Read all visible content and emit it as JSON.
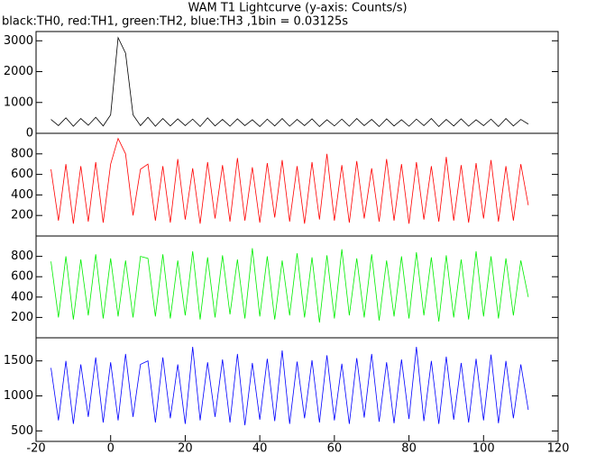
{
  "chart_data": [
    {
      "type": "line",
      "title": "WAM T1 Lightcurve (y-axis: Counts/s)",
      "subtitle": "black:TH0, red:TH1, green:TH2, blue:TH3 ,1bin = 0.03125s",
      "x": [
        -16,
        -14,
        -12,
        -10,
        -8,
        -6,
        -4,
        -2,
        0,
        2,
        4,
        6,
        8,
        10,
        12,
        14,
        16,
        18,
        20,
        22,
        24,
        26,
        28,
        30,
        32,
        34,
        36,
        38,
        40,
        42,
        44,
        46,
        48,
        50,
        52,
        54,
        56,
        58,
        60,
        62,
        64,
        66,
        68,
        70,
        72,
        74,
        76,
        78,
        80,
        82,
        84,
        86,
        88,
        90,
        92,
        94,
        96,
        98,
        100,
        102,
        104,
        106,
        108,
        110,
        112
      ],
      "series": [
        {
          "name": "TH0",
          "color": "#000000",
          "values": [
            450,
            250,
            500,
            230,
            480,
            260,
            520,
            240,
            600,
            3100,
            2600,
            600,
            250,
            520,
            230,
            480,
            240,
            470,
            250,
            460,
            220,
            500,
            240,
            450,
            230,
            470,
            250,
            440,
            220,
            460,
            240,
            480,
            230,
            450,
            250,
            470,
            220,
            440,
            240,
            460,
            230,
            480,
            250,
            450,
            220,
            470,
            240,
            440,
            230,
            460,
            250,
            480,
            220,
            450,
            240,
            470,
            230,
            440,
            250,
            460,
            220,
            480,
            240,
            450,
            300
          ]
        }
      ],
      "xlim": [
        -20,
        120
      ],
      "ylim": [
        0,
        3300
      ],
      "yticks": [
        0,
        1000,
        2000,
        3000
      ]
    },
    {
      "type": "line",
      "x": [
        -16,
        -14,
        -12,
        -10,
        -8,
        -6,
        -4,
        -2,
        0,
        2,
        4,
        6,
        8,
        10,
        12,
        14,
        16,
        18,
        20,
        22,
        24,
        26,
        28,
        30,
        32,
        34,
        36,
        38,
        40,
        42,
        44,
        46,
        48,
        50,
        52,
        54,
        56,
        58,
        60,
        62,
        64,
        66,
        68,
        70,
        72,
        74,
        76,
        78,
        80,
        82,
        84,
        86,
        88,
        90,
        92,
        94,
        96,
        98,
        100,
        102,
        104,
        106,
        108,
        110,
        112
      ],
      "series": [
        {
          "name": "TH1",
          "color": "#ff0000",
          "values": [
            650,
            150,
            700,
            120,
            680,
            140,
            720,
            130,
            700,
            950,
            800,
            200,
            650,
            700,
            150,
            680,
            130,
            750,
            160,
            660,
            120,
            720,
            170,
            690,
            140,
            760,
            150,
            670,
            130,
            710,
            180,
            740,
            140,
            680,
            120,
            720,
            160,
            800,
            150,
            690,
            130,
            730,
            170,
            660,
            140,
            750,
            150,
            700,
            120,
            720,
            160,
            680,
            140,
            770,
            150,
            690,
            130,
            710,
            170,
            740,
            140,
            680,
            150,
            700,
            300
          ]
        }
      ],
      "xlim": [
        -20,
        120
      ],
      "ylim": [
        0,
        1000
      ],
      "yticks": [
        200,
        400,
        600,
        800
      ]
    },
    {
      "type": "line",
      "x": [
        -16,
        -14,
        -12,
        -10,
        -8,
        -6,
        -4,
        -2,
        0,
        2,
        4,
        6,
        8,
        10,
        12,
        14,
        16,
        18,
        20,
        22,
        24,
        26,
        28,
        30,
        32,
        34,
        36,
        38,
        40,
        42,
        44,
        46,
        48,
        50,
        52,
        54,
        56,
        58,
        60,
        62,
        64,
        66,
        68,
        70,
        72,
        74,
        76,
        78,
        80,
        82,
        84,
        86,
        88,
        90,
        92,
        94,
        96,
        98,
        100,
        102,
        104,
        106,
        108,
        110,
        112
      ],
      "series": [
        {
          "name": "TH2",
          "color": "#00ee00",
          "values": [
            750,
            200,
            800,
            180,
            770,
            220,
            820,
            190,
            780,
            210,
            760,
            200,
            800,
            780,
            210,
            820,
            190,
            760,
            220,
            850,
            180,
            790,
            200,
            810,
            230,
            770,
            190,
            880,
            210,
            800,
            180,
            760,
            220,
            830,
            200,
            790,
            150,
            810,
            190,
            870,
            220,
            780,
            200,
            820,
            170,
            760,
            210,
            800,
            190,
            840,
            220,
            790,
            160,
            810,
            200,
            770,
            180,
            850,
            210,
            800,
            190,
            780,
            220,
            760,
            400
          ]
        }
      ],
      "xlim": [
        -20,
        120
      ],
      "ylim": [
        0,
        1000
      ],
      "yticks": [
        200,
        400,
        600,
        800
      ]
    },
    {
      "type": "line",
      "x": [
        -16,
        -14,
        -12,
        -10,
        -8,
        -6,
        -4,
        -2,
        0,
        2,
        4,
        6,
        8,
        10,
        12,
        14,
        16,
        18,
        20,
        22,
        24,
        26,
        28,
        30,
        32,
        34,
        36,
        38,
        40,
        42,
        44,
        46,
        48,
        50,
        52,
        54,
        56,
        58,
        60,
        62,
        64,
        66,
        68,
        70,
        72,
        74,
        76,
        78,
        80,
        82,
        84,
        86,
        88,
        90,
        92,
        94,
        96,
        98,
        100,
        102,
        104,
        106,
        108,
        110,
        112
      ],
      "series": [
        {
          "name": "TH3",
          "color": "#0000ff",
          "values": [
            1400,
            650,
            1500,
            600,
            1450,
            700,
            1550,
            620,
            1480,
            650,
            1600,
            700,
            1450,
            1500,
            620,
            1550,
            680,
            1450,
            600,
            1700,
            650,
            1480,
            700,
            1520,
            620,
            1600,
            580,
            1470,
            660,
            1530,
            640,
            1650,
            600,
            1490,
            680,
            1510,
            620,
            1580,
            650,
            1460,
            600,
            1540,
            690,
            1600,
            630,
            1480,
            610,
            1520,
            670,
            1700,
            640,
            1500,
            600,
            1560,
            660,
            1470,
            620,
            1530,
            650,
            1590,
            610,
            1500,
            680,
            1450,
            800
          ]
        }
      ],
      "xlim": [
        -20,
        120
      ],
      "ylim": [
        350,
        1830
      ],
      "yticks": [
        500,
        1000,
        1500
      ],
      "xticks": [
        -20,
        0,
        20,
        40,
        60,
        80,
        100,
        120
      ]
    }
  ]
}
